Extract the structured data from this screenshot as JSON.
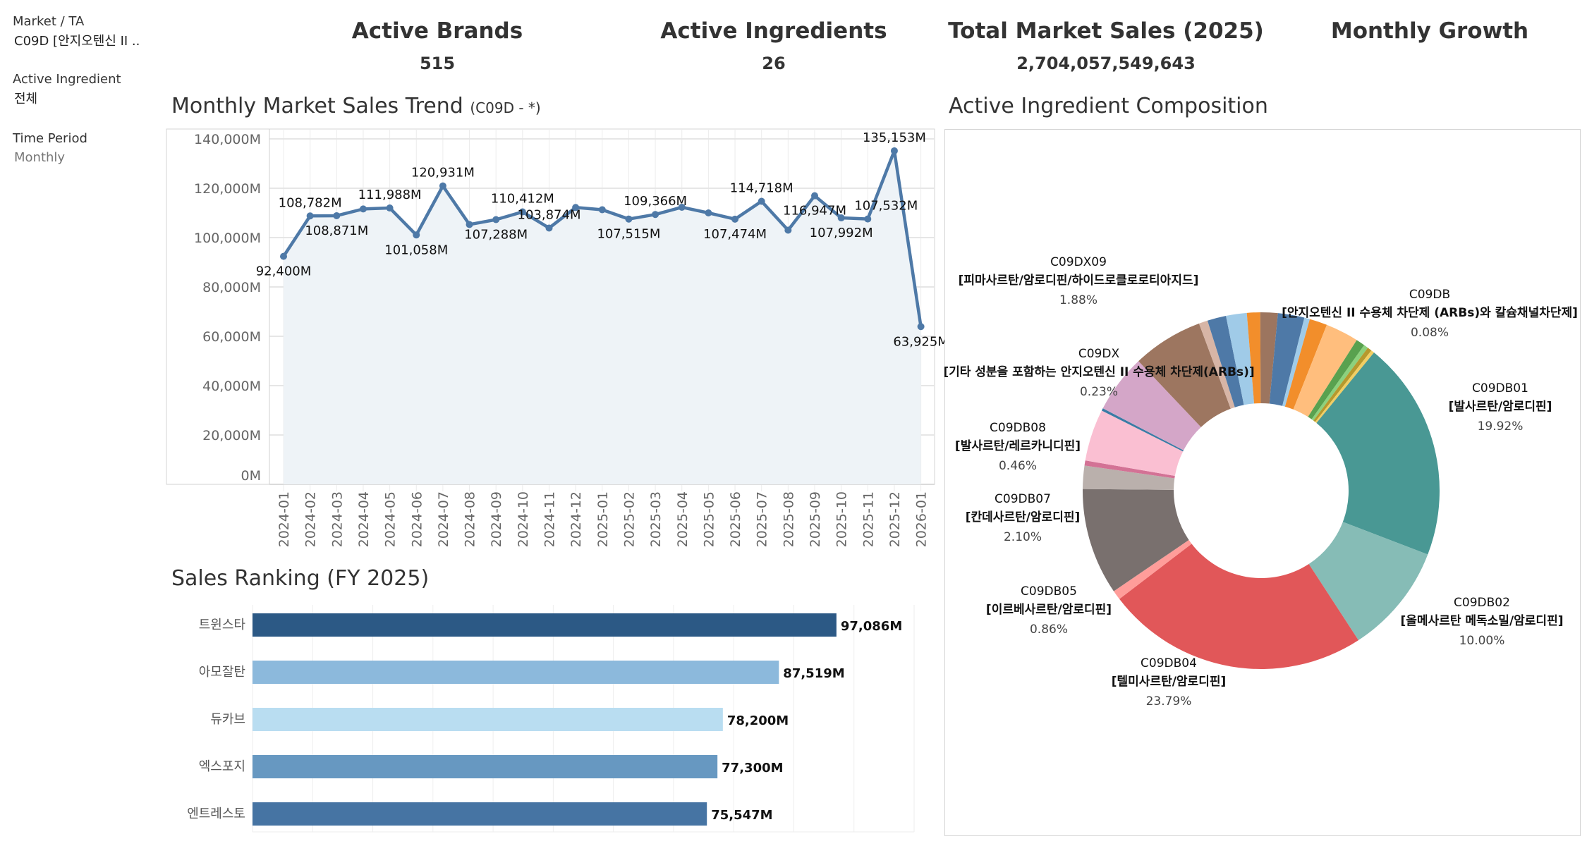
{
  "filters": [
    {
      "label": "Market / TA",
      "value": "C09D [안지오텐신 II .."
    },
    {
      "label": "Active Ingredient",
      "value": "전체"
    },
    {
      "label": "Time Period",
      "value": "Monthly"
    }
  ],
  "kpis": [
    {
      "title": "Active Brands",
      "value": "515"
    },
    {
      "title": "Active Ingredients",
      "value": "26"
    },
    {
      "title": "Total Market Sales (2025)",
      "value": "2,704,057,549,643"
    },
    {
      "title": "Monthly Growth",
      "value": ""
    }
  ],
  "trend": {
    "title": "Monthly Market Sales Trend",
    "subtitle": "(C09D - *)"
  },
  "composition": {
    "title": "Active Ingredient Composition"
  },
  "ranking": {
    "title": "Sales Ranking (FY 2025)"
  },
  "colors": {
    "line": "#4e79a7",
    "area": "#eef3f7",
    "text": "#333333"
  },
  "chart_data": [
    {
      "type": "line",
      "title": "Monthly Market Sales Trend (C09D - *)",
      "ylim": [
        0,
        140000
      ],
      "yticks": [
        "0M",
        "20,000M",
        "40,000M",
        "60,000M",
        "80,000M",
        "100,000M",
        "120,000M",
        "140,000M"
      ],
      "ytick_values": [
        0,
        20000,
        40000,
        60000,
        80000,
        100000,
        120000,
        140000
      ],
      "grid": true,
      "x": [
        "2024-01",
        "2024-02",
        "2024-03",
        "2024-04",
        "2024-05",
        "2024-06",
        "2024-07",
        "2024-08",
        "2024-09",
        "2024-10",
        "2024-11",
        "2024-12",
        "2025-01",
        "2025-02",
        "2025-03",
        "2025-04",
        "2025-05",
        "2025-06",
        "2025-07",
        "2025-08",
        "2025-09",
        "2025-10",
        "2025-11",
        "2025-12",
        "2026-01"
      ],
      "values": [
        92400,
        108782,
        108871,
        111600,
        111988,
        101058,
        120931,
        105300,
        107288,
        110412,
        103874,
        112200,
        111300,
        107515,
        109366,
        112300,
        110000,
        107474,
        114718,
        103000,
        116947,
        107992,
        107532,
        135153,
        63925
      ],
      "labels": [
        "92,400M",
        "108,782M",
        "108,871M",
        "",
        "111,988M",
        "101,058M",
        "120,931M",
        "",
        "107,288M",
        "110,412M",
        "103,874M",
        "",
        "",
        "107,515M",
        "109,366M",
        "",
        "",
        "107,474M",
        "114,718M",
        "",
        "116,947M",
        "107,992M",
        "107,532M",
        "135,153M",
        "63,925M"
      ],
      "label_side": [
        "below",
        "above",
        "below",
        "",
        "above",
        "below",
        "above",
        "",
        "below",
        "above",
        "above",
        "",
        "",
        "below",
        "above",
        "",
        "",
        "below",
        "above",
        "",
        "below",
        "below",
        "above",
        "above",
        "below"
      ]
    },
    {
      "type": "pie",
      "title": "Active Ingredient Composition",
      "donut": true,
      "slices": [
        {
          "value": 1.5,
          "color": "#9c755f"
        },
        {
          "value": 2.4,
          "color": "#4e79a7"
        },
        {
          "value": 0.5,
          "color": "#a0cbe8"
        },
        {
          "value": 1.6,
          "color": "#f28e2b"
        },
        {
          "value": 3.0,
          "color": "#ffbe7d"
        },
        {
          "value": 0.8,
          "color": "#59a14f"
        },
        {
          "value": 0.4,
          "color": "#8cd17d"
        },
        {
          "value": 0.4,
          "color": "#b6992d"
        },
        {
          "value": 0.3,
          "color": "#f1ce63"
        },
        {
          "value": 19.92,
          "color": "#499894",
          "code": "C09DB01",
          "name": "[발사르탄/암로디핀]",
          "pct": "19.92%"
        },
        {
          "value": 10.0,
          "color": "#86bcb6",
          "code": "C09DB02",
          "name": "[올메사르탄 메독소밀/암로디핀]",
          "pct": "10.00%"
        },
        {
          "value": 23.79,
          "color": "#e15759",
          "code": "C09DB04",
          "name": "[텔미사르탄/암로디핀]",
          "pct": "23.79%"
        },
        {
          "value": 0.86,
          "color": "#ff9d9a",
          "code": "C09DB05",
          "name": "[이르베사르탄/암로디핀]",
          "pct": "0.86%"
        },
        {
          "value": 9.68,
          "color": "#79706e"
        },
        {
          "value": 2.1,
          "color": "#bab0ac",
          "code": "C09DB07",
          "name": "[칸데사르탄/암로디핀]",
          "pct": "2.10%"
        },
        {
          "value": 0.46,
          "color": "#d37295",
          "code": "C09DB08",
          "name": "[발사르탄/레르카니디핀]",
          "pct": "0.46%"
        },
        {
          "value": 4.7,
          "color": "#fabfd2"
        },
        {
          "value": 0.23,
          "color": "#3a7ca5",
          "code": "C09DX",
          "name": "[기타 성분을 포함하는 안지오텐신 II 수용체 차단제(ARBs)]",
          "pct": "0.23%"
        },
        {
          "value": 5.3,
          "color": "#d4a6c8"
        },
        {
          "value": 6.4,
          "color": "#9d7660"
        },
        {
          "value": 0.8,
          "color": "#d7b5a6"
        },
        {
          "value": 1.7,
          "color": "#4e79a7"
        },
        {
          "value": 1.88,
          "color": "#a0cbe8",
          "code": "C09DX09",
          "name": "[피마사르탄/암로디핀/하이드로클로로티아지드]",
          "pct": "1.88%"
        },
        {
          "value": 1.2,
          "color": "#f28e2b"
        },
        {
          "value": 0.08,
          "color": "#9c755f",
          "code": "C09DB",
          "name": "[안지오텐신 II 수용체 차단제 (ARBs)와 칼슘채널차단제]",
          "pct": "0.08%"
        }
      ]
    },
    {
      "type": "bar",
      "orientation": "horizontal",
      "title": "Sales Ranking (FY 2025)",
      "xlim": [
        0,
        110000
      ],
      "grid": true,
      "categories": [
        "트윈스타",
        "아모잘탄",
        "듀카브",
        "엑스포지",
        "엔트레스토"
      ],
      "values": [
        97086,
        87519,
        78200,
        77300,
        75547
      ],
      "labels": [
        "97,086M",
        "87,519M",
        "78,200M",
        "77,300M",
        "75,547M"
      ],
      "colors": [
        "#2c5985",
        "#8cb9dc",
        "#b9ddf1",
        "#6798c1",
        "#4674a3"
      ]
    }
  ]
}
